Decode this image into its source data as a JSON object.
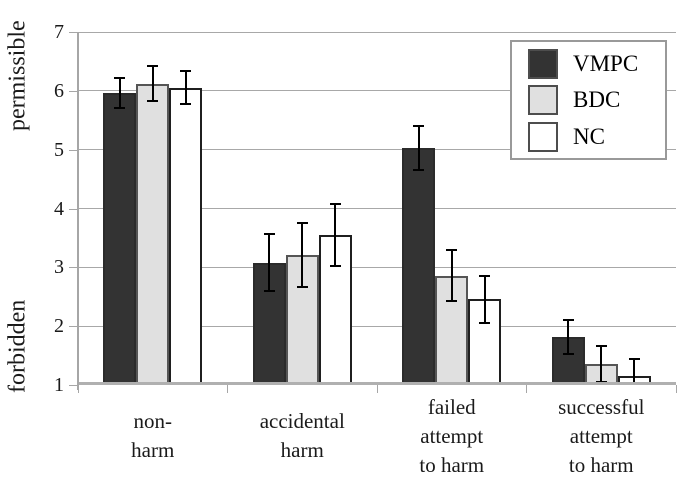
{
  "chart_data": {
    "type": "bar",
    "title": "",
    "categories": [
      {
        "lines": [
          "non-",
          "harm"
        ]
      },
      {
        "lines": [
          "accidental",
          "harm"
        ]
      },
      {
        "lines": [
          "failed",
          "attempt",
          "to harm"
        ]
      },
      {
        "lines": [
          "successful",
          "attempt",
          "to harm"
        ]
      }
    ],
    "series": [
      {
        "name": "VMPC",
        "color": "#333333",
        "border_color": "#2b2b2b",
        "values": [
          5.96,
          3.08,
          5.03,
          1.81
        ],
        "errors": [
          0.26,
          0.48,
          0.37,
          0.29
        ]
      },
      {
        "name": "BDC",
        "color": "#e0e0e0",
        "border_color": "#555555",
        "values": [
          6.12,
          3.21,
          2.86,
          1.36
        ],
        "errors": [
          0.3,
          0.55,
          0.44,
          0.31
        ]
      },
      {
        "name": "NC",
        "color": "#ffffff",
        "border_color": "#1f1f1f",
        "values": [
          6.05,
          3.55,
          2.46,
          1.16
        ],
        "errors": [
          0.28,
          0.52,
          0.4,
          0.28
        ]
      }
    ],
    "y_axis": {
      "min": 1,
      "max": 7,
      "ticks": [
        7,
        6,
        5,
        4,
        3,
        2,
        1
      ],
      "label_top": "permissible",
      "label_bottom": "forbidden"
    },
    "xlabel": "",
    "ylabel_top": "permissible",
    "ylabel_bottom": "forbidden",
    "grid": true,
    "legend": {
      "position": "top-right",
      "entries": [
        "VMPC",
        "BDC",
        "NC"
      ]
    },
    "colors": {
      "gridline": "#a8a8a8",
      "axis": "#a6a6a6",
      "error_bar": "#000000",
      "legend_border": "#999999"
    }
  }
}
